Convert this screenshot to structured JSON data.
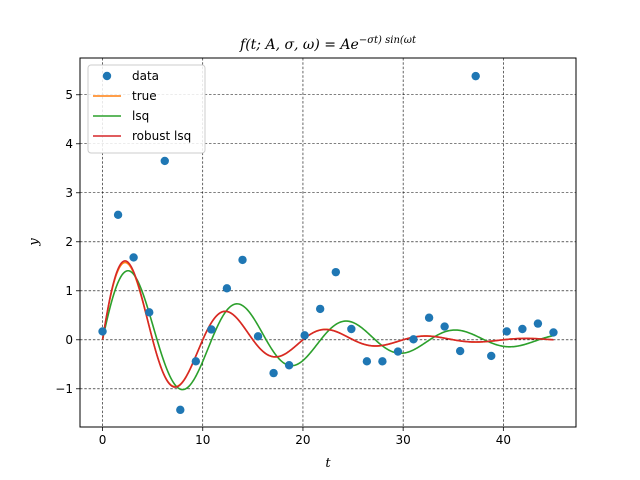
{
  "chart_data": {
    "type": "line",
    "title": "f(t; A, σ, ω) = Ae^(−σt) sin(ωt)",
    "xlabel": "t",
    "ylabel": "y",
    "xlim": [
      -2.25,
      47.25
    ],
    "ylim": [
      -1.78,
      5.75
    ],
    "xticks": [
      0,
      10,
      20,
      30,
      40
    ],
    "yticks": [
      -1,
      0,
      1,
      2,
      3,
      4,
      5
    ],
    "grid": true,
    "legend_position": "top-left",
    "legend": [
      "data",
      "true",
      "lsq",
      "robust lsq"
    ],
    "series": [
      {
        "name": "data",
        "kind": "scatter",
        "color": "#1f77b4",
        "x": [
          0,
          1.55,
          3.1,
          4.66,
          6.21,
          7.76,
          9.31,
          10.86,
          12.41,
          13.97,
          15.52,
          17.07,
          18.62,
          20.17,
          21.72,
          23.28,
          24.83,
          26.38,
          27.93,
          29.48,
          31.03,
          32.59,
          34.14,
          35.69,
          37.24,
          38.79,
          40.34,
          41.9,
          43.45,
          45.0
        ],
        "y": [
          0.17,
          2.55,
          1.68,
          0.56,
          3.65,
          -1.43,
          -0.44,
          0.21,
          1.05,
          1.63,
          0.07,
          -0.68,
          -0.52,
          0.09,
          0.63,
          1.38,
          0.22,
          -0.44,
          -0.44,
          -0.24,
          0.01,
          0.45,
          0.27,
          -0.23,
          5.38,
          -0.33,
          0.17,
          0.22,
          0.33,
          0.15
        ]
      },
      {
        "name": "true",
        "kind": "line",
        "color": "#ff7f0e",
        "params": {
          "A": 2,
          "sigma": 0.1,
          "omega": 0.6283
        }
      },
      {
        "name": "lsq",
        "kind": "line",
        "color": "#2ca02c",
        "params": {
          "A": 1.65,
          "sigma": 0.06,
          "omega": 0.5773
        }
      },
      {
        "name": "robust lsq",
        "kind": "line",
        "color": "#d62728",
        "params": {
          "A": 2.05,
          "sigma": 0.102,
          "omega": 0.6283
        }
      }
    ],
    "t_range": [
      0,
      45
    ]
  }
}
